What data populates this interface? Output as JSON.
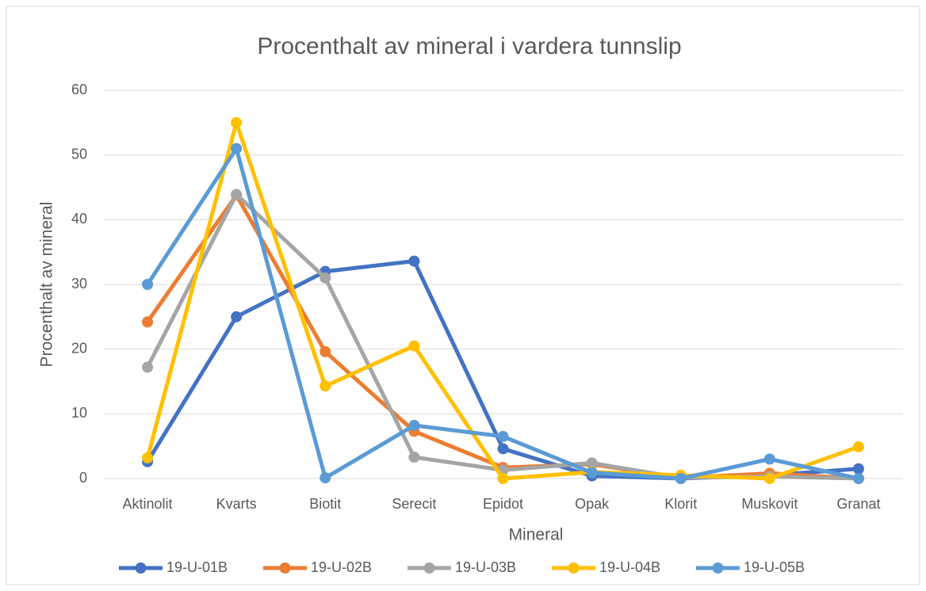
{
  "chart_data": {
    "type": "line",
    "title": "Procenthalt av mineral i vardera tunnslip",
    "x_label": "Mineral",
    "y_label": "Procenthalt av mineral",
    "categories": [
      "Aktinolit",
      "Kvarts",
      "Biotit",
      "Serecit",
      "Epidot",
      "Opak",
      "Klorit",
      "Muskovit",
      "Granat"
    ],
    "series": [
      {
        "name": "19-U-01B",
        "color": "#4472c4",
        "values": [
          2.6,
          25,
          32,
          33.6,
          4.6,
          0.4,
          0,
          0.5,
          1.5
        ]
      },
      {
        "name": "19-U-02B",
        "color": "#ed7d31",
        "values": [
          24.2,
          43.8,
          19.6,
          7.3,
          1.7,
          2.2,
          0.1,
          0.8,
          0
        ]
      },
      {
        "name": "19-U-03B",
        "color": "#a5a5a5",
        "values": [
          17.2,
          43.9,
          31,
          3.3,
          1.3,
          2.4,
          0.1,
          0.3,
          0
        ]
      },
      {
        "name": "19-U-04B",
        "color": "#ffc000",
        "values": [
          3.2,
          55,
          14.3,
          20.5,
          0,
          1,
          0.5,
          0,
          4.9
        ]
      },
      {
        "name": "19-U-05B",
        "color": "#5b9bd5",
        "values": [
          30,
          51,
          0.1,
          8.2,
          6.5,
          0.9,
          0,
          3,
          0
        ]
      }
    ],
    "ylim": [
      0,
      60
    ],
    "yticks": [
      0,
      10,
      20,
      30,
      40,
      50,
      60
    ],
    "grid": true,
    "legend": "bottom"
  }
}
